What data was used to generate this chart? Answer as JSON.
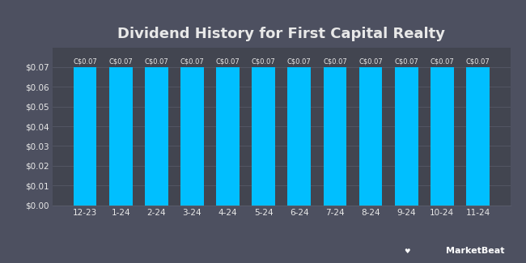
{
  "title": "Dividend History for First Capital Realty",
  "categories": [
    "12-23",
    "1-24",
    "2-24",
    "3-24",
    "4-24",
    "5-24",
    "6-24",
    "7-24",
    "8-24",
    "9-24",
    "10-24",
    "11-24"
  ],
  "values": [
    0.07,
    0.07,
    0.07,
    0.07,
    0.07,
    0.07,
    0.07,
    0.07,
    0.07,
    0.07,
    0.07,
    0.07
  ],
  "bar_color": "#00BFFF",
  "background_color": "#4d5060",
  "plot_background_color": "#424550",
  "grid_color": "#5a5d6a",
  "text_color": "#e8e8e8",
  "title_fontsize": 13,
  "tick_fontsize": 7.5,
  "bar_label_fontsize": 6.0,
  "ylim": [
    0,
    0.08
  ],
  "yticks": [
    0.0,
    0.01,
    0.02,
    0.03,
    0.04,
    0.05,
    0.06,
    0.07
  ],
  "bar_label": "C$0.07",
  "bar_width": 0.65,
  "marketbeat_fontsize": 8
}
